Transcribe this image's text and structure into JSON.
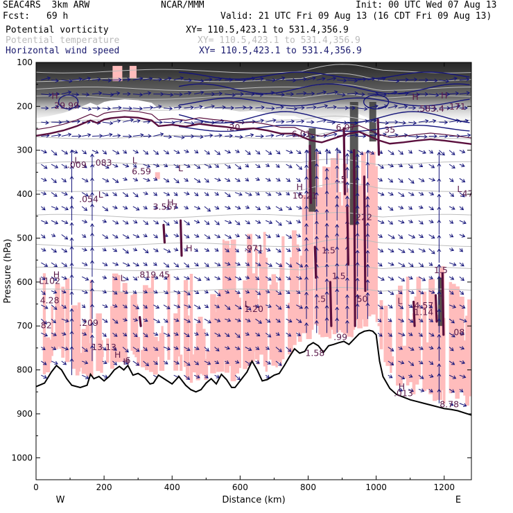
{
  "header": {
    "model": "SEAC4RS  3km ARW",
    "org": "NCAR/MMM",
    "init": "Init: 00 UTC Wed 07 Aug 13",
    "fcst_label": "Fcst:",
    "fcst_value": "69 h",
    "valid": "Valid: 21 UTC Fri 09 Aug 13 (16 CDT Fri 09 Aug 13)"
  },
  "fields": [
    {
      "name": "Potential vorticity",
      "xy": "XY= 110.5,423.1 to 531.4,356.9",
      "color": "#000000"
    },
    {
      "name": "Potential temperature",
      "xy": "XY= 110.5,423.1 to 531.4,356.9",
      "color": "#bbbbbb"
    },
    {
      "name": "Horizontal wind speed",
      "xy": "XY= 110.5,423.1 to 531.4,356.9",
      "color": "#1a1a6e"
    }
  ],
  "chart_data": {
    "type": "cross-section",
    "xlabel": "Distance (km)",
    "ylabel": "Pressure (hPa)",
    "xlim": [
      0,
      1280
    ],
    "ylim": [
      100,
      1050
    ],
    "xticks": [
      0,
      200,
      400,
      600,
      800,
      1000,
      1200
    ],
    "yticks": [
      100,
      200,
      300,
      400,
      500,
      600,
      700,
      800,
      900,
      1000
    ],
    "xtick_labels": [
      "0",
      "200",
      "400",
      "600",
      "800",
      "1000",
      "1200"
    ],
    "ytick_labels": [
      "100",
      "200",
      "300",
      "400",
      "500",
      "600",
      "700",
      "800",
      "900",
      "1000"
    ],
    "endpoint_labels": {
      "left": "W",
      "right": "E"
    },
    "terrain_pressure": [
      [
        0,
        838
      ],
      [
        25,
        830
      ],
      [
        45,
        805
      ],
      [
        60,
        790
      ],
      [
        75,
        800
      ],
      [
        90,
        820
      ],
      [
        105,
        835
      ],
      [
        130,
        840
      ],
      [
        150,
        835
      ],
      [
        160,
        810
      ],
      [
        170,
        820
      ],
      [
        185,
        815
      ],
      [
        200,
        825
      ],
      [
        215,
        815
      ],
      [
        230,
        800
      ],
      [
        245,
        792
      ],
      [
        258,
        800
      ],
      [
        270,
        790
      ],
      [
        285,
        812
      ],
      [
        300,
        808
      ],
      [
        320,
        818
      ],
      [
        335,
        832
      ],
      [
        345,
        830
      ],
      [
        360,
        812
      ],
      [
        380,
        822
      ],
      [
        400,
        832
      ],
      [
        420,
        815
      ],
      [
        440,
        835
      ],
      [
        455,
        845
      ],
      [
        470,
        850
      ],
      [
        485,
        845
      ],
      [
        500,
        830
      ],
      [
        515,
        820
      ],
      [
        530,
        832
      ],
      [
        545,
        810
      ],
      [
        560,
        822
      ],
      [
        575,
        840
      ],
      [
        585,
        840
      ],
      [
        600,
        825
      ],
      [
        620,
        805
      ],
      [
        635,
        780
      ],
      [
        650,
        800
      ],
      [
        665,
        825
      ],
      [
        680,
        822
      ],
      [
        700,
        812
      ],
      [
        715,
        808
      ],
      [
        730,
        790
      ],
      [
        745,
        770
      ],
      [
        760,
        752
      ],
      [
        775,
        762
      ],
      [
        790,
        758
      ],
      [
        800,
        745
      ],
      [
        815,
        738
      ],
      [
        830,
        745
      ],
      [
        845,
        760
      ],
      [
        860,
        745
      ],
      [
        875,
        742
      ],
      [
        890,
        738
      ],
      [
        905,
        735
      ],
      [
        920,
        742
      ],
      [
        935,
        730
      ],
      [
        950,
        718
      ],
      [
        965,
        712
      ],
      [
        980,
        710
      ],
      [
        990,
        712
      ],
      [
        1000,
        720
      ],
      [
        1010,
        780
      ],
      [
        1020,
        815
      ],
      [
        1040,
        842
      ],
      [
        1060,
        856
      ],
      [
        1080,
        862
      ],
      [
        1100,
        868
      ],
      [
        1120,
        872
      ],
      [
        1140,
        876
      ],
      [
        1160,
        880
      ],
      [
        1180,
        884
      ],
      [
        1200,
        888
      ],
      [
        1220,
        890
      ],
      [
        1240,
        893
      ],
      [
        1260,
        898
      ],
      [
        1280,
        903
      ]
    ],
    "tropopause_pressure": [
      [
        0,
        267
      ],
      [
        40,
        262
      ],
      [
        80,
        255
      ],
      [
        120,
        245
      ],
      [
        160,
        232
      ],
      [
        180,
        238
      ],
      [
        200,
        230
      ],
      [
        220,
        227
      ],
      [
        260,
        224
      ],
      [
        300,
        226
      ],
      [
        340,
        232
      ],
      [
        360,
        245
      ],
      [
        400,
        242
      ],
      [
        440,
        246
      ],
      [
        480,
        240
      ],
      [
        520,
        244
      ],
      [
        560,
        247
      ],
      [
        600,
        252
      ],
      [
        640,
        250
      ],
      [
        680,
        255
      ],
      [
        720,
        262
      ],
      [
        760,
        262
      ],
      [
        790,
        272
      ],
      [
        810,
        278
      ],
      [
        840,
        282
      ],
      [
        880,
        272
      ],
      [
        920,
        262
      ],
      [
        950,
        258
      ],
      [
        980,
        268
      ],
      [
        1010,
        278
      ],
      [
        1040,
        285
      ],
      [
        1080,
        282
      ],
      [
        1120,
        278
      ],
      [
        1160,
        275
      ],
      [
        1200,
        278
      ],
      [
        1240,
        282
      ],
      [
        1280,
        286
      ]
    ],
    "pv_labels": [
      {
        "x": 90,
        "p": 205,
        "text": "29.99"
      },
      {
        "x": 120,
        "p": 340,
        "text": ".009"
      },
      {
        "x": 195,
        "p": 335,
        "text": ".083"
      },
      {
        "x": 310,
        "p": 355,
        "text": "6.59"
      },
      {
        "x": 155,
        "p": 418,
        "text": ".054"
      },
      {
        "x": 640,
        "p": 530,
        "text": ".971"
      },
      {
        "x": 640,
        "p": 668,
        "text": "1.20"
      },
      {
        "x": 1140,
        "p": 675,
        "text": "1.14"
      },
      {
        "x": 1080,
        "p": 860,
        "text": ".013"
      },
      {
        "x": 1215,
        "p": 885,
        "text": "8.78"
      },
      {
        "x": 1265,
        "p": 405,
        "text": ".47"
      },
      {
        "x": 380,
        "p": 435,
        "text": "3.567"
      },
      {
        "x": 345,
        "p": 590,
        "text": ".819.45"
      },
      {
        "x": 40,
        "p": 648,
        "text": "4.28"
      },
      {
        "x": 40,
        "p": 604,
        "text": "L102"
      },
      {
        "x": 30,
        "p": 705,
        "text": "82"
      },
      {
        "x": 155,
        "p": 700,
        "text": ".209"
      },
      {
        "x": 200,
        "p": 755,
        "text": "13.13"
      },
      {
        "x": 270,
        "p": 785,
        "text": "6"
      },
      {
        "x": 790,
        "p": 410,
        "text": "16.21"
      },
      {
        "x": 900,
        "p": 373,
        "text": ".5"
      },
      {
        "x": 960,
        "p": 459,
        "text": ".222"
      },
      {
        "x": 840,
        "p": 645,
        "text": ".5"
      },
      {
        "x": 860,
        "p": 535,
        "text": "1.5"
      },
      {
        "x": 890,
        "p": 593,
        "text": "1.5"
      },
      {
        "x": 955,
        "p": 645,
        "text": ".50"
      },
      {
        "x": 820,
        "p": 768,
        "text": "1.58"
      },
      {
        "x": 895,
        "p": 732,
        "text": ".99"
      },
      {
        "x": 1140,
        "p": 660,
        "text": "4.57"
      },
      {
        "x": 1160,
        "p": 212,
        "text": ".583.4"
      },
      {
        "x": 1235,
        "p": 207,
        "text": ".171"
      },
      {
        "x": 1190,
        "p": 580,
        "text": "1.5"
      },
      {
        "x": 1240,
        "p": 721,
        "text": ".08"
      },
      {
        "x": 1040,
        "p": 260,
        "text": "35"
      },
      {
        "x": 780,
        "p": 270,
        "text": "6.01"
      },
      {
        "x": 580,
        "p": 255,
        "text": ".20"
      },
      {
        "x": 910,
        "p": 255,
        "text": "6.07"
      }
    ],
    "hl_markers": [
      {
        "x": 55,
        "p": 183,
        "text": "H"
      },
      {
        "x": 120,
        "p": 330,
        "text": "L"
      },
      {
        "x": 290,
        "p": 330,
        "text": "L"
      },
      {
        "x": 425,
        "p": 348,
        "text": "L"
      },
      {
        "x": 190,
        "p": 408,
        "text": "L"
      },
      {
        "x": 395,
        "p": 426,
        "text": "H"
      },
      {
        "x": 255,
        "p": 598,
        "text": "L"
      },
      {
        "x": 60,
        "p": 590,
        "text": "H"
      },
      {
        "x": 450,
        "p": 530,
        "text": "H"
      },
      {
        "x": 240,
        "p": 772,
        "text": "H"
      },
      {
        "x": 265,
        "p": 788,
        "text": "H"
      },
      {
        "x": 620,
        "p": 657,
        "text": "L"
      },
      {
        "x": 1070,
        "p": 650,
        "text": "L"
      },
      {
        "x": 1075,
        "p": 845,
        "text": "H"
      },
      {
        "x": 1245,
        "p": 395,
        "text": "L"
      },
      {
        "x": 1115,
        "p": 185,
        "text": "H"
      },
      {
        "x": 1200,
        "p": 182,
        "text": "H"
      },
      {
        "x": 775,
        "p": 390,
        "text": "H"
      },
      {
        "x": 1190,
        "p": 640,
        "text": "H"
      }
    ],
    "colors": {
      "pv_shade_high": "#303030",
      "pv_shade_positive": "#ffbcbc",
      "pv_contour": "#5a0f3d",
      "theta_contour": "#bdbdbd",
      "wind_contour": "#14147a",
      "wind_vector": "#14147a",
      "terrain": "#000000"
    }
  }
}
